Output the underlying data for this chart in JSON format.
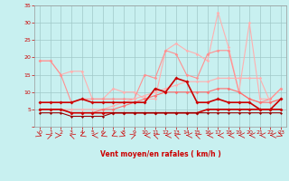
{
  "xlabel": "Vent moyen/en rafales ( km/h )",
  "xlim": [
    -0.5,
    23.5
  ],
  "ylim": [
    0,
    35
  ],
  "yticks": [
    0,
    5,
    10,
    15,
    20,
    25,
    30,
    35
  ],
  "xticks": [
    0,
    1,
    2,
    3,
    4,
    5,
    6,
    7,
    8,
    9,
    10,
    11,
    12,
    13,
    14,
    15,
    16,
    17,
    18,
    19,
    20,
    21,
    22,
    23
  ],
  "bg_color": "#c8f0f0",
  "grid_color": "#a0c8c8",
  "lines": [
    {
      "x": [
        0,
        1,
        2,
        3,
        4,
        5,
        6,
        7,
        8,
        9,
        10,
        11,
        12,
        13,
        14,
        15,
        16,
        17,
        18,
        19,
        20,
        21,
        22,
        23
      ],
      "y": [
        19,
        19,
        15,
        16,
        16,
        8,
        8,
        11,
        10,
        10,
        8,
        8,
        22,
        24,
        22,
        21,
        19,
        33,
        23,
        10,
        30,
        8,
        8,
        11
      ],
      "color": "#ffb0b0",
      "lw": 0.8,
      "marker": "D",
      "ms": 1.8
    },
    {
      "x": [
        0,
        1,
        2,
        3,
        4,
        5,
        6,
        7,
        8,
        9,
        10,
        11,
        12,
        13,
        14,
        15,
        16,
        17,
        18,
        19,
        20,
        21,
        22,
        23
      ],
      "y": [
        19,
        19,
        15,
        7,
        8,
        8,
        8,
        8,
        8,
        8,
        15,
        14,
        22,
        21,
        15,
        14,
        21,
        22,
        22,
        10,
        8,
        7,
        8,
        11
      ],
      "color": "#ff9090",
      "lw": 0.8,
      "marker": "D",
      "ms": 1.8
    },
    {
      "x": [
        0,
        1,
        2,
        3,
        4,
        5,
        6,
        7,
        8,
        9,
        10,
        11,
        12,
        13,
        14,
        15,
        16,
        17,
        18,
        19,
        20,
        21,
        22,
        23
      ],
      "y": [
        5,
        5,
        5,
        5,
        5,
        5,
        5,
        6,
        7,
        8,
        9,
        10,
        11,
        12,
        13,
        13,
        13,
        14,
        14,
        14,
        14,
        14,
        7,
        8
      ],
      "color": "#ffb0b0",
      "lw": 0.8,
      "marker": "D",
      "ms": 1.8
    },
    {
      "x": [
        0,
        1,
        2,
        3,
        4,
        5,
        6,
        7,
        8,
        9,
        10,
        11,
        12,
        13,
        14,
        15,
        16,
        17,
        18,
        19,
        20,
        21,
        22,
        23
      ],
      "y": [
        5,
        5,
        5,
        4,
        4,
        4,
        5,
        5,
        6,
        7,
        8,
        9,
        10,
        10,
        10,
        10,
        10,
        11,
        11,
        10,
        8,
        7,
        7,
        8
      ],
      "color": "#ff7070",
      "lw": 0.8,
      "marker": "D",
      "ms": 1.8
    },
    {
      "x": [
        0,
        1,
        2,
        3,
        4,
        5,
        6,
        7,
        8,
        9,
        10,
        11,
        12,
        13,
        14,
        15,
        16,
        17,
        18,
        19,
        20,
        21,
        22,
        23
      ],
      "y": [
        7,
        7,
        7,
        7,
        8,
        7,
        7,
        7,
        7,
        7,
        7,
        11,
        10,
        14,
        13,
        7,
        7,
        8,
        7,
        7,
        7,
        5,
        5,
        8
      ],
      "color": "#cc0000",
      "lw": 1.2,
      "marker": "s",
      "ms": 2.0
    },
    {
      "x": [
        0,
        1,
        2,
        3,
        4,
        5,
        6,
        7,
        8,
        9,
        10,
        11,
        12,
        13,
        14,
        15,
        16,
        17,
        18,
        19,
        20,
        21,
        22,
        23
      ],
      "y": [
        5,
        5,
        5,
        4,
        4,
        4,
        4,
        4,
        4,
        4,
        4,
        4,
        4,
        4,
        4,
        4,
        5,
        5,
        5,
        5,
        5,
        5,
        5,
        5
      ],
      "color": "#cc0000",
      "lw": 1.2,
      "marker": "s",
      "ms": 2.0
    },
    {
      "x": [
        0,
        1,
        2,
        3,
        4,
        5,
        6,
        7,
        8,
        9,
        10,
        11,
        12,
        13,
        14,
        15,
        16,
        17,
        18,
        19,
        20,
        21,
        22,
        23
      ],
      "y": [
        4,
        4,
        4,
        3,
        3,
        3,
        3,
        4,
        4,
        4,
        4,
        4,
        4,
        4,
        4,
        4,
        4,
        4,
        4,
        4,
        4,
        4,
        4,
        4
      ],
      "color": "#990000",
      "lw": 0.8,
      "marker": "s",
      "ms": 1.5
    }
  ],
  "arrow_angles": [
    45,
    135,
    90,
    225,
    315,
    270,
    315,
    315,
    45,
    135,
    270,
    225,
    270,
    225,
    270,
    225,
    270,
    270,
    270,
    270,
    270,
    270,
    270,
    45
  ]
}
